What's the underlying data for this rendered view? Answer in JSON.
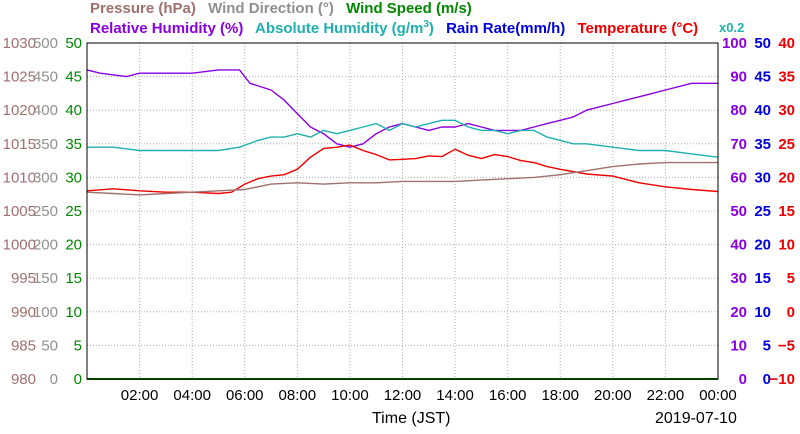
{
  "legend": {
    "pressure": "Pressure (hPa)",
    "wind_direction": "Wind Direction (°)",
    "wind_speed": "Wind Speed (m/s)",
    "relative_humidity": "Relative Humidity (%)",
    "absolute_humidity_prefix": "Absolute Humidity (g/m",
    "absolute_humidity_sup": "3",
    "absolute_humidity_suffix": ")",
    "rain_rate": "Rain Rate(mm/h)",
    "temperature": "Temperature (°C)",
    "scale_note": "x0.2"
  },
  "colors": {
    "pressure": "#a07070",
    "wind_direction": "#909090",
    "wind_speed": "#008800",
    "relative_humidity": "#8a00e0",
    "absolute_humidity": "#20b0b0",
    "rain_rate": "#0000dd",
    "temperature": "#ee0000",
    "grid": "#b0b0b0"
  },
  "chart_data": {
    "type": "line",
    "xlabel": "Time (JST)",
    "date": "2019-07-10",
    "x_range_hours": [
      0,
      24
    ],
    "x_ticks": [
      "02:00",
      "04:00",
      "06:00",
      "08:00",
      "10:00",
      "12:00",
      "14:00",
      "16:00",
      "18:00",
      "20:00",
      "22:00",
      "00:00"
    ],
    "grid": true,
    "axes": {
      "pressure": {
        "min": 980,
        "max": 1030,
        "ticks": [
          "1030",
          "1025",
          "1020",
          "1015",
          "1010",
          "1005",
          "1000",
          "995",
          "990",
          "985",
          "980"
        ]
      },
      "wind_direction": {
        "min": 0,
        "max": 500,
        "ticks": [
          "500",
          "450",
          "400",
          "350",
          "300",
          "250",
          "200",
          "150",
          "100",
          "50",
          "0"
        ]
      },
      "wind_speed": {
        "min": 0,
        "max": 50,
        "ticks": [
          "50",
          "45",
          "40",
          "35",
          "30",
          "25",
          "20",
          "15",
          "10",
          "5",
          "0"
        ]
      },
      "relative_humidity": {
        "min": 0,
        "max": 100,
        "ticks": [
          "100",
          "90",
          "80",
          "70",
          "60",
          "50",
          "40",
          "30",
          "20",
          "10",
          "0"
        ]
      },
      "rain_rate": {
        "min": 0,
        "max": 50,
        "ticks": [
          "50",
          "45",
          "40",
          "35",
          "30",
          "25",
          "20",
          "15",
          "10",
          "5",
          "0"
        ]
      },
      "temperature": {
        "min": -10,
        "max": 40,
        "ticks": [
          "40",
          "35",
          "30",
          "25",
          "20",
          "15",
          "10",
          "5",
          "0",
          "−5",
          "−10"
        ]
      }
    },
    "series": [
      {
        "name": "Relative Humidity (%)",
        "axis": "relative_humidity",
        "color_key": "relative_humidity",
        "x": [
          0,
          0.5,
          1.5,
          2,
          3,
          4,
          5,
          5.8,
          6.2,
          7,
          7.5,
          8,
          8.5,
          9,
          9.5,
          10,
          10.5,
          11,
          11.5,
          12,
          12.5,
          13,
          13.5,
          14,
          14.5,
          15,
          15.5,
          16,
          16.5,
          17,
          17.5,
          18,
          18.5,
          19,
          19.5,
          20,
          20.5,
          21,
          21.5,
          22,
          23,
          24
        ],
        "values": [
          92,
          91,
          90,
          91,
          91,
          91,
          92,
          92,
          88,
          86,
          83,
          79,
          75,
          73,
          70,
          69,
          70,
          73,
          75,
          76,
          75,
          74,
          75,
          75,
          76,
          75,
          74,
          74,
          74,
          75,
          76,
          77,
          78,
          80,
          81,
          82,
          83,
          84,
          85,
          86,
          88,
          88
        ]
      },
      {
        "name": "Absolute Humidity (g/m3)",
        "axis": "relative_humidity",
        "color_key": "absolute_humidity",
        "x": [
          0,
          1,
          2,
          3,
          4,
          5,
          5.8,
          6.5,
          7,
          7.5,
          8,
          8.5,
          9,
          9.5,
          10,
          10.5,
          11,
          11.5,
          12,
          12.5,
          13,
          13.5,
          14,
          14.5,
          15,
          15.5,
          16,
          16.5,
          17,
          17.5,
          18,
          18.5,
          19,
          20,
          21,
          22,
          23,
          24
        ],
        "values": [
          69,
          69,
          68,
          68,
          68,
          68,
          69,
          71,
          72,
          72,
          73,
          72,
          74,
          73,
          74,
          75,
          76,
          74,
          76,
          75,
          76,
          77,
          77,
          75,
          74,
          74,
          73,
          74,
          74,
          72,
          71,
          70,
          70,
          69,
          68,
          68,
          67,
          66
        ]
      },
      {
        "name": "Temperature (°C)",
        "axis": "temperature",
        "color_key": "temperature",
        "x": [
          0,
          1,
          2,
          3,
          4,
          5,
          5.5,
          6,
          6.5,
          7,
          7.5,
          8,
          8.5,
          9,
          9.5,
          10,
          10.5,
          11,
          11.5,
          12,
          12.5,
          13,
          13.5,
          14,
          14.5,
          15,
          15.5,
          16,
          16.5,
          17,
          17.5,
          18,
          19,
          20,
          21,
          22,
          23,
          24
        ],
        "values": [
          18,
          18.3,
          18,
          17.8,
          17.8,
          17.6,
          17.8,
          19,
          19.8,
          20.2,
          20.4,
          21.2,
          23,
          24.3,
          24.5,
          24.8,
          24,
          23.4,
          22.6,
          22.7,
          22.8,
          23.2,
          23.1,
          24.2,
          23.3,
          22.8,
          23.4,
          23.1,
          22.5,
          22.2,
          21.6,
          21.2,
          20.5,
          20.2,
          19.2,
          18.6,
          18.2,
          17.9
        ]
      },
      {
        "name": "Pressure (hPa)",
        "axis": "pressure",
        "color_key": "pressure",
        "x": [
          0,
          1,
          2,
          3,
          4,
          5,
          6,
          7,
          8,
          9,
          10,
          11,
          12,
          13,
          14,
          15,
          16,
          17,
          18,
          19,
          20,
          21,
          22,
          23,
          24
        ],
        "values": [
          1007.8,
          1007.6,
          1007.4,
          1007.6,
          1007.8,
          1008.0,
          1008.2,
          1009.0,
          1009.2,
          1009.0,
          1009.2,
          1009.2,
          1009.4,
          1009.4,
          1009.4,
          1009.6,
          1009.8,
          1010.0,
          1010.4,
          1011.0,
          1011.6,
          1012.0,
          1012.2,
          1012.2,
          1012.2
        ]
      },
      {
        "name": "Wind Speed (m/s)",
        "axis": "wind_speed",
        "color_key": "wind_speed",
        "x": [
          0,
          24
        ],
        "values": [
          0,
          0
        ]
      }
    ]
  }
}
